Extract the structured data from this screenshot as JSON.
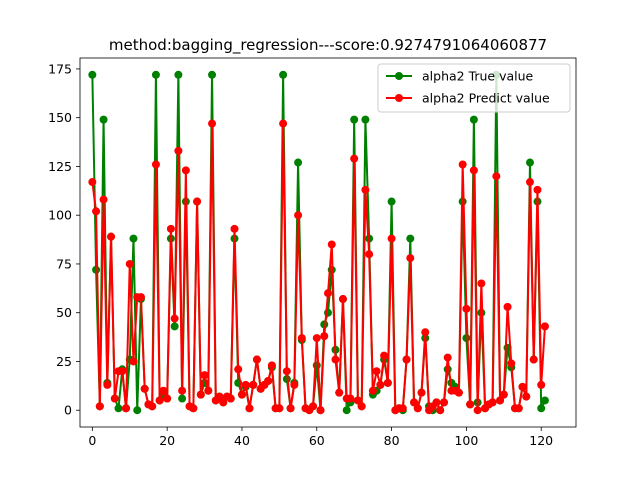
{
  "chart_data": {
    "type": "line",
    "title": "method:bagging_regression---score:0.9274791064060877",
    "xlabel": "",
    "ylabel": "",
    "xlim": [
      -3.3,
      129.3
    ],
    "ylim": [
      -8.6,
      180.6
    ],
    "xticks": [
      0,
      20,
      40,
      60,
      80,
      100,
      120
    ],
    "yticks": [
      0,
      25,
      50,
      75,
      100,
      125,
      150,
      175
    ],
    "legend_position": "upper right",
    "series": [
      {
        "name": "alpha2 True value",
        "color": "#008000",
        "marker": "circle",
        "values": [
          172,
          72,
          2,
          149,
          14,
          89,
          6,
          1,
          21,
          1,
          26,
          88,
          0,
          57,
          11,
          3,
          2,
          172,
          5,
          7,
          6,
          88,
          43,
          172,
          6,
          107,
          2,
          1,
          107,
          8,
          14,
          10,
          172,
          5,
          7,
          4,
          7,
          6,
          88,
          14,
          8,
          12,
          1,
          13,
          26,
          11,
          13,
          15,
          22,
          1,
          1,
          172,
          16,
          1,
          14,
          127,
          36,
          1,
          0,
          2,
          23,
          0,
          44,
          50,
          72,
          31,
          9,
          57,
          0,
          4,
          149,
          5,
          2,
          149,
          88,
          8,
          10,
          13,
          26,
          14,
          107,
          0,
          1,
          0,
          26,
          88,
          4,
          1,
          9,
          37,
          2,
          0,
          4,
          0,
          4,
          21,
          14,
          12,
          9,
          107,
          37,
          3,
          149,
          4,
          50,
          1,
          3,
          4,
          172,
          5,
          8,
          32,
          22,
          1,
          1,
          12,
          7,
          127,
          26,
          107,
          1,
          5
        ]
      },
      {
        "name": "alpha2 Predict value",
        "color": "#ff0000",
        "marker": "circle",
        "values": [
          117,
          102,
          2,
          108,
          13,
          89,
          6,
          20,
          20,
          1,
          75,
          25,
          58,
          58,
          11,
          3,
          2,
          126,
          5,
          10,
          6,
          93,
          47,
          133,
          10,
          123,
          2,
          1,
          107,
          8,
          18,
          10,
          147,
          5,
          7,
          4,
          7,
          6,
          93,
          21,
          8,
          13,
          1,
          13,
          26,
          11,
          13,
          15,
          23,
          1,
          1,
          147,
          20,
          1,
          13,
          100,
          37,
          1,
          0,
          2,
          37,
          0,
          38,
          60,
          85,
          26,
          9,
          57,
          6,
          6,
          129,
          5,
          2,
          113,
          80,
          10,
          20,
          13,
          28,
          14,
          88,
          0,
          1,
          1,
          26,
          78,
          4,
          1,
          9,
          40,
          0,
          2,
          4,
          0,
          4,
          27,
          10,
          10,
          9,
          126,
          52,
          3,
          123,
          0,
          65,
          1,
          3,
          4,
          120,
          5,
          8,
          53,
          24,
          1,
          1,
          12,
          7,
          117,
          26,
          113,
          13,
          43
        ]
      }
    ]
  }
}
